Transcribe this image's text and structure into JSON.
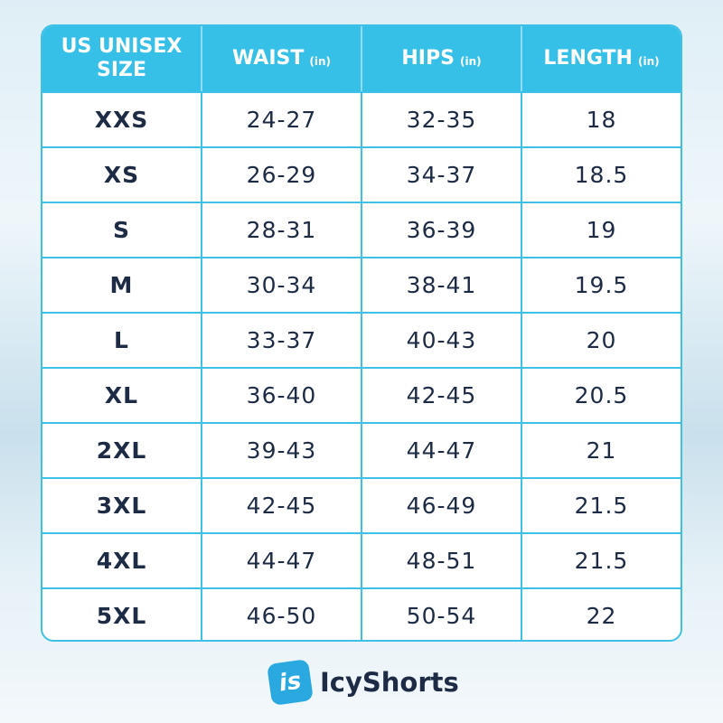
{
  "table": {
    "header": [
      {
        "label": "US UNISEX SIZE"
      },
      {
        "label": "WAIST",
        "unit": "(in)"
      },
      {
        "label": "HIPS",
        "unit": "(in)"
      },
      {
        "label": "LENGTH",
        "unit": "(in)"
      }
    ],
    "rows": [
      [
        "XXS",
        "24-27",
        "32-35",
        "18"
      ],
      [
        "XS",
        "26-29",
        "34-37",
        "18.5"
      ],
      [
        "S",
        "28-31",
        "36-39",
        "19"
      ],
      [
        "M",
        "30-34",
        "38-41",
        "19.5"
      ],
      [
        "L",
        "33-37",
        "40-43",
        "20"
      ],
      [
        "XL",
        "36-40",
        "42-45",
        "20.5"
      ],
      [
        "2XL",
        "39-43",
        "44-47",
        "21"
      ],
      [
        "3XL",
        "42-45",
        "46-49",
        "21.5"
      ],
      [
        "4XL",
        "44-47",
        "48-51",
        "21.5"
      ],
      [
        "5XL",
        "46-50",
        "50-54",
        "22"
      ]
    ]
  },
  "brand": {
    "logo": "is",
    "name": "IcyShorts"
  }
}
